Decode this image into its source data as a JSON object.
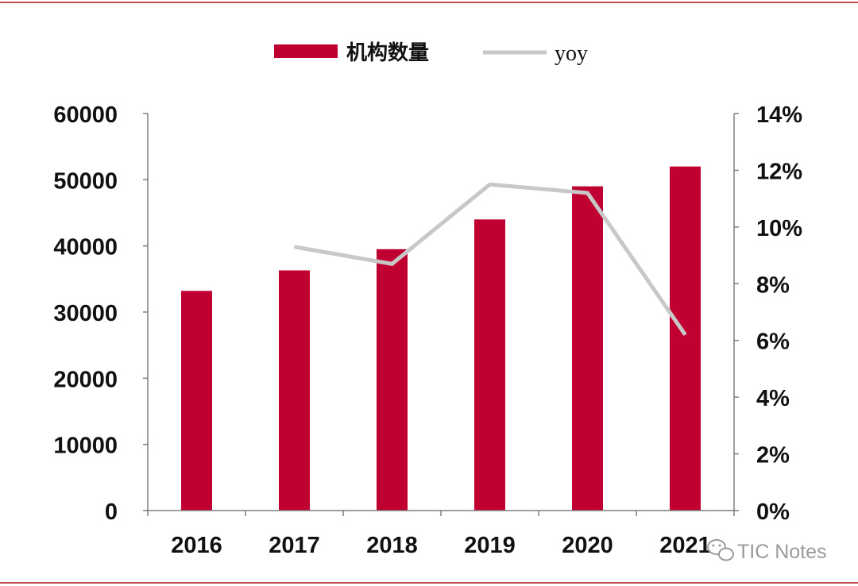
{
  "chart_data": {
    "type": "bar",
    "categories": [
      "2016",
      "2017",
      "2018",
      "2019",
      "2020",
      "2021"
    ],
    "series": [
      {
        "name": "机构数量",
        "kind": "bar",
        "axis": "left",
        "values": [
          33200,
          36300,
          39500,
          44000,
          49000,
          52000
        ]
      },
      {
        "name": "yoy",
        "kind": "line",
        "axis": "right",
        "values": [
          null,
          0.093,
          0.087,
          0.115,
          0.112,
          0.062
        ]
      }
    ],
    "left_axis": {
      "min": 0,
      "max": 60000,
      "step": 10000,
      "tick_labels": [
        "0",
        "10000",
        "20000",
        "30000",
        "40000",
        "50000",
        "60000"
      ]
    },
    "right_axis": {
      "min": 0,
      "max": 0.14,
      "step": 0.02,
      "tick_labels": [
        "0%",
        "2%",
        "4%",
        "6%",
        "8%",
        "10%",
        "12%",
        "14%"
      ]
    },
    "legend_position": "top-center",
    "grid": false
  },
  "legend": {
    "bar_label": "机构数量",
    "line_label": "yoy"
  },
  "watermark": {
    "text": "TIC Notes",
    "icon": "wechat-icon"
  },
  "colors": {
    "bar": "#c00030",
    "line": "#c8c8c8",
    "rule": "#c0504d",
    "axis": "#7f7f7f"
  }
}
